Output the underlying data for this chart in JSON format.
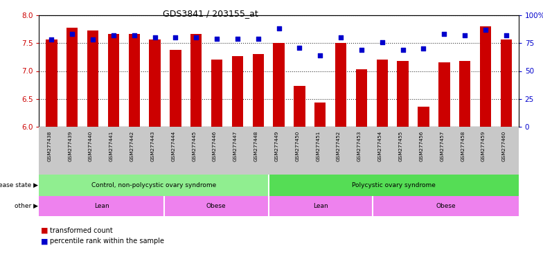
{
  "title": "GDS3841 / 203155_at",
  "samples": [
    "GSM277438",
    "GSM277439",
    "GSM277440",
    "GSM277441",
    "GSM277442",
    "GSM277443",
    "GSM277444",
    "GSM277445",
    "GSM277446",
    "GSM277447",
    "GSM277448",
    "GSM277449",
    "GSM277450",
    "GSM277451",
    "GSM277452",
    "GSM277453",
    "GSM277454",
    "GSM277455",
    "GSM277456",
    "GSM277457",
    "GSM277458",
    "GSM277459",
    "GSM277460"
  ],
  "red_values": [
    7.56,
    7.78,
    7.73,
    7.67,
    7.67,
    7.56,
    7.38,
    7.67,
    7.2,
    7.27,
    7.3,
    7.5,
    6.73,
    6.44,
    7.5,
    7.03,
    7.2,
    7.18,
    6.36,
    7.15,
    7.18,
    7.8,
    7.57
  ],
  "blue_values": [
    78,
    83,
    78,
    82,
    82,
    80,
    80,
    80,
    79,
    79,
    79,
    88,
    71,
    64,
    80,
    69,
    76,
    69,
    70,
    83,
    82,
    87,
    82
  ],
  "ylim_left": [
    6.0,
    8.0
  ],
  "ylim_right": [
    0,
    100
  ],
  "yticks_left": [
    6.0,
    6.5,
    7.0,
    7.5,
    8.0
  ],
  "yticks_right": [
    0,
    25,
    50,
    75,
    100
  ],
  "ytick_labels_right": [
    "0",
    "25",
    "50",
    "75",
    "100%"
  ],
  "disease_state_groups": [
    {
      "label": "Control, non-polycystic ovary syndrome",
      "start": 0,
      "end": 11,
      "color": "#90EE90"
    },
    {
      "label": "Polycystic ovary syndrome",
      "start": 11,
      "end": 23,
      "color": "#55DD55"
    }
  ],
  "other_groups": [
    {
      "label": "Lean",
      "start": 0,
      "end": 6
    },
    {
      "label": "Obese",
      "start": 6,
      "end": 11
    },
    {
      "label": "Lean",
      "start": 11,
      "end": 16
    },
    {
      "label": "Obese",
      "start": 16,
      "end": 23
    }
  ],
  "other_color": "#EE82EE",
  "bar_color": "#CC0000",
  "dot_color": "#0000CC",
  "tick_bg": "#C8C8C8",
  "left_label_color": "#CC0000",
  "right_label_color": "#0000CC",
  "n_samples": 23
}
